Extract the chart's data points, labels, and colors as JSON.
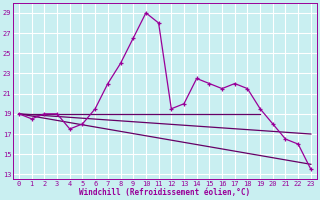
{
  "xlabel": "Windchill (Refroidissement éolien,°C)",
  "xlim": [
    -0.5,
    23.5
  ],
  "ylim": [
    12.5,
    30
  ],
  "yticks": [
    13,
    15,
    17,
    19,
    21,
    23,
    25,
    27,
    29
  ],
  "xticks": [
    0,
    1,
    2,
    3,
    4,
    5,
    6,
    7,
    8,
    9,
    10,
    11,
    12,
    13,
    14,
    15,
    16,
    17,
    18,
    19,
    20,
    21,
    22,
    23
  ],
  "bg_color": "#c9eff1",
  "grid_color": "#ffffff",
  "line_color": "#990099",
  "line_color2": "#660066",
  "main_series": [
    19.0,
    18.5,
    19.0,
    19.0,
    17.5,
    18.0,
    19.5,
    22.0,
    24.0,
    26.5,
    29.0,
    28.0,
    19.5,
    20.0,
    22.5,
    22.0,
    21.5,
    22.0,
    21.5,
    19.5,
    18.0,
    16.5,
    16.0,
    13.5
  ],
  "flat_line_top": {
    "x": [
      0,
      19
    ],
    "y": [
      19.0,
      19.0
    ]
  },
  "flat_line_bottom": {
    "x": [
      0,
      23
    ],
    "y": [
      19.0,
      14.0
    ]
  },
  "flat_line_mid": {
    "x": [
      0,
      23
    ],
    "y": [
      19.0,
      17.0
    ]
  }
}
